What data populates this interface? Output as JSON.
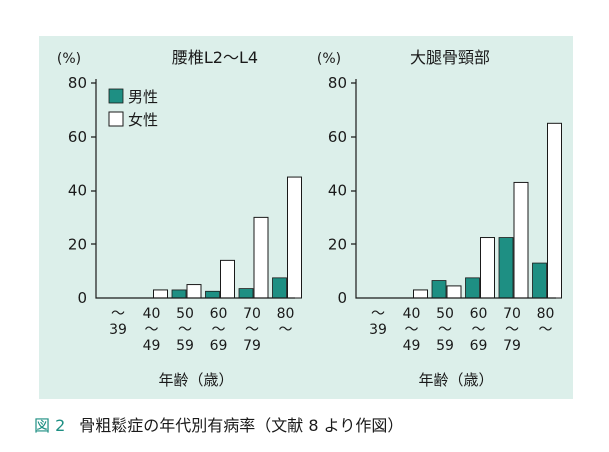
{
  "figure_label": "図 2",
  "caption": "骨粗鬆症の年代別有病率（文献 8 より作図）",
  "colors": {
    "male": "#1e8f83",
    "female": "#ffffff",
    "background": "#dcefea",
    "accent": "#1e8f83"
  },
  "legend": {
    "male": "男性",
    "female": "女性",
    "position": "top-left"
  },
  "chart_data": [
    {
      "type": "bar",
      "title": "腰椎L2〜L4",
      "ylabel": "(%)",
      "xlabel": "年齢（歳）",
      "ylim": [
        0,
        80
      ],
      "yticks": [
        "0",
        "20",
        "40",
        "60",
        "80"
      ],
      "categories": [
        [
          "〜",
          "39"
        ],
        [
          "40",
          "〜",
          "49"
        ],
        [
          "50",
          "〜",
          "59"
        ],
        [
          "60",
          "〜",
          "69"
        ],
        [
          "70",
          "〜",
          "79"
        ],
        [
          "80",
          "〜"
        ]
      ],
      "series": [
        {
          "name": "男性",
          "values": [
            0,
            0,
            3,
            2.5,
            3.5,
            7.5
          ]
        },
        {
          "name": "女性",
          "values": [
            0,
            3,
            5,
            14,
            30,
            45
          ]
        }
      ]
    },
    {
      "type": "bar",
      "title": "大腿骨頸部",
      "ylabel": "(%)",
      "xlabel": "年齢（歳）",
      "ylim": [
        0,
        80
      ],
      "yticks": [
        "0",
        "20",
        "40",
        "60",
        "80"
      ],
      "categories": [
        [
          "〜",
          "39"
        ],
        [
          "40",
          "〜",
          "49"
        ],
        [
          "50",
          "〜",
          "59"
        ],
        [
          "60",
          "〜",
          "69"
        ],
        [
          "70",
          "〜",
          "79"
        ],
        [
          "80",
          "〜"
        ]
      ],
      "series": [
        {
          "name": "男性",
          "values": [
            0,
            0,
            6.5,
            7.5,
            22.5,
            13
          ]
        },
        {
          "name": "女性",
          "values": [
            0,
            3,
            4.5,
            22.5,
            43,
            65
          ]
        }
      ]
    }
  ]
}
